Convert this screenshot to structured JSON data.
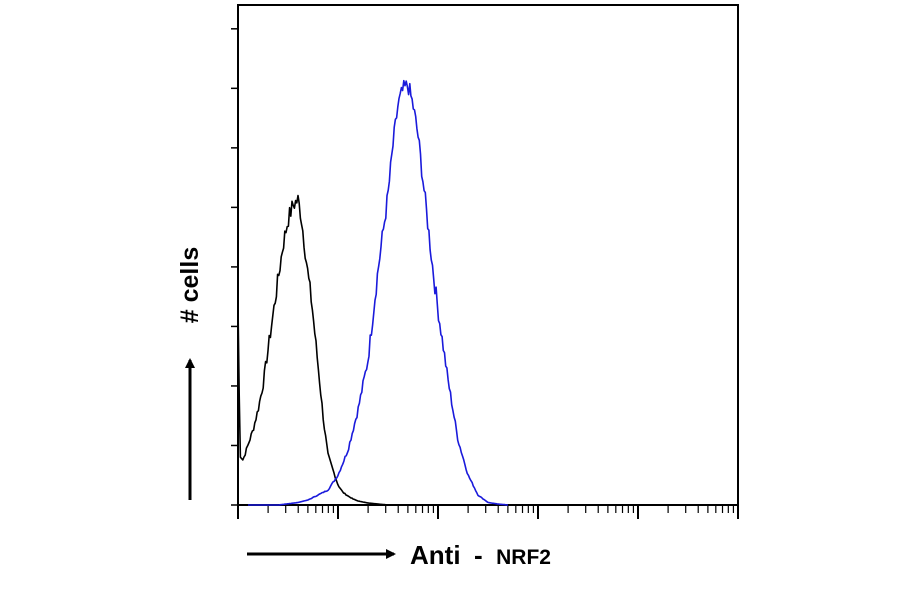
{
  "chart_data": {
    "type": "line",
    "title": "",
    "xlabel": {
      "main": "Anti",
      "dash": "-",
      "target": "NRF2"
    },
    "ylabel": "# cells",
    "x_scale": "log",
    "xlim": [
      0,
      5
    ],
    "ylim": [
      0,
      100
    ],
    "grid": false,
    "legend": "none",
    "series": [
      {
        "color": "#000000",
        "x": [
          0.0,
          0.02,
          0.05,
          0.1,
          0.15,
          0.2,
          0.25,
          0.3,
          0.35,
          0.4,
          0.45,
          0.5,
          0.55,
          0.6,
          0.63,
          0.66,
          0.7,
          0.74,
          0.78,
          0.82,
          0.86,
          0.9,
          0.95,
          1.0,
          1.05,
          1.1,
          1.15,
          1.2,
          1.3,
          1.4,
          1.5
        ],
        "y": [
          40,
          10,
          9,
          12,
          15,
          19,
          24,
          31,
          38,
          45,
          52,
          57,
          60,
          61,
          58,
          53,
          46,
          40,
          32,
          24,
          16,
          10,
          7,
          4,
          2.5,
          1.8,
          1.2,
          0.8,
          0.4,
          0.2,
          0
        ]
      },
      {
        "color": "#1a1adb",
        "x": [
          0.1,
          0.4,
          0.6,
          0.7,
          0.8,
          0.9,
          1.0,
          1.1,
          1.2,
          1.3,
          1.4,
          1.5,
          1.55,
          1.6,
          1.65,
          1.7,
          1.75,
          1.8,
          1.85,
          1.9,
          1.95,
          2.0,
          2.1,
          2.2,
          2.3,
          2.4,
          2.5,
          2.6,
          2.7
        ],
        "y": [
          0,
          0,
          0.5,
          1,
          2,
          3,
          6,
          11,
          19,
          29,
          47,
          62,
          72,
          80,
          83,
          84,
          80,
          74,
          65,
          56,
          47,
          39,
          25,
          13,
          6,
          2,
          0.5,
          0.2,
          0
        ]
      }
    ]
  }
}
